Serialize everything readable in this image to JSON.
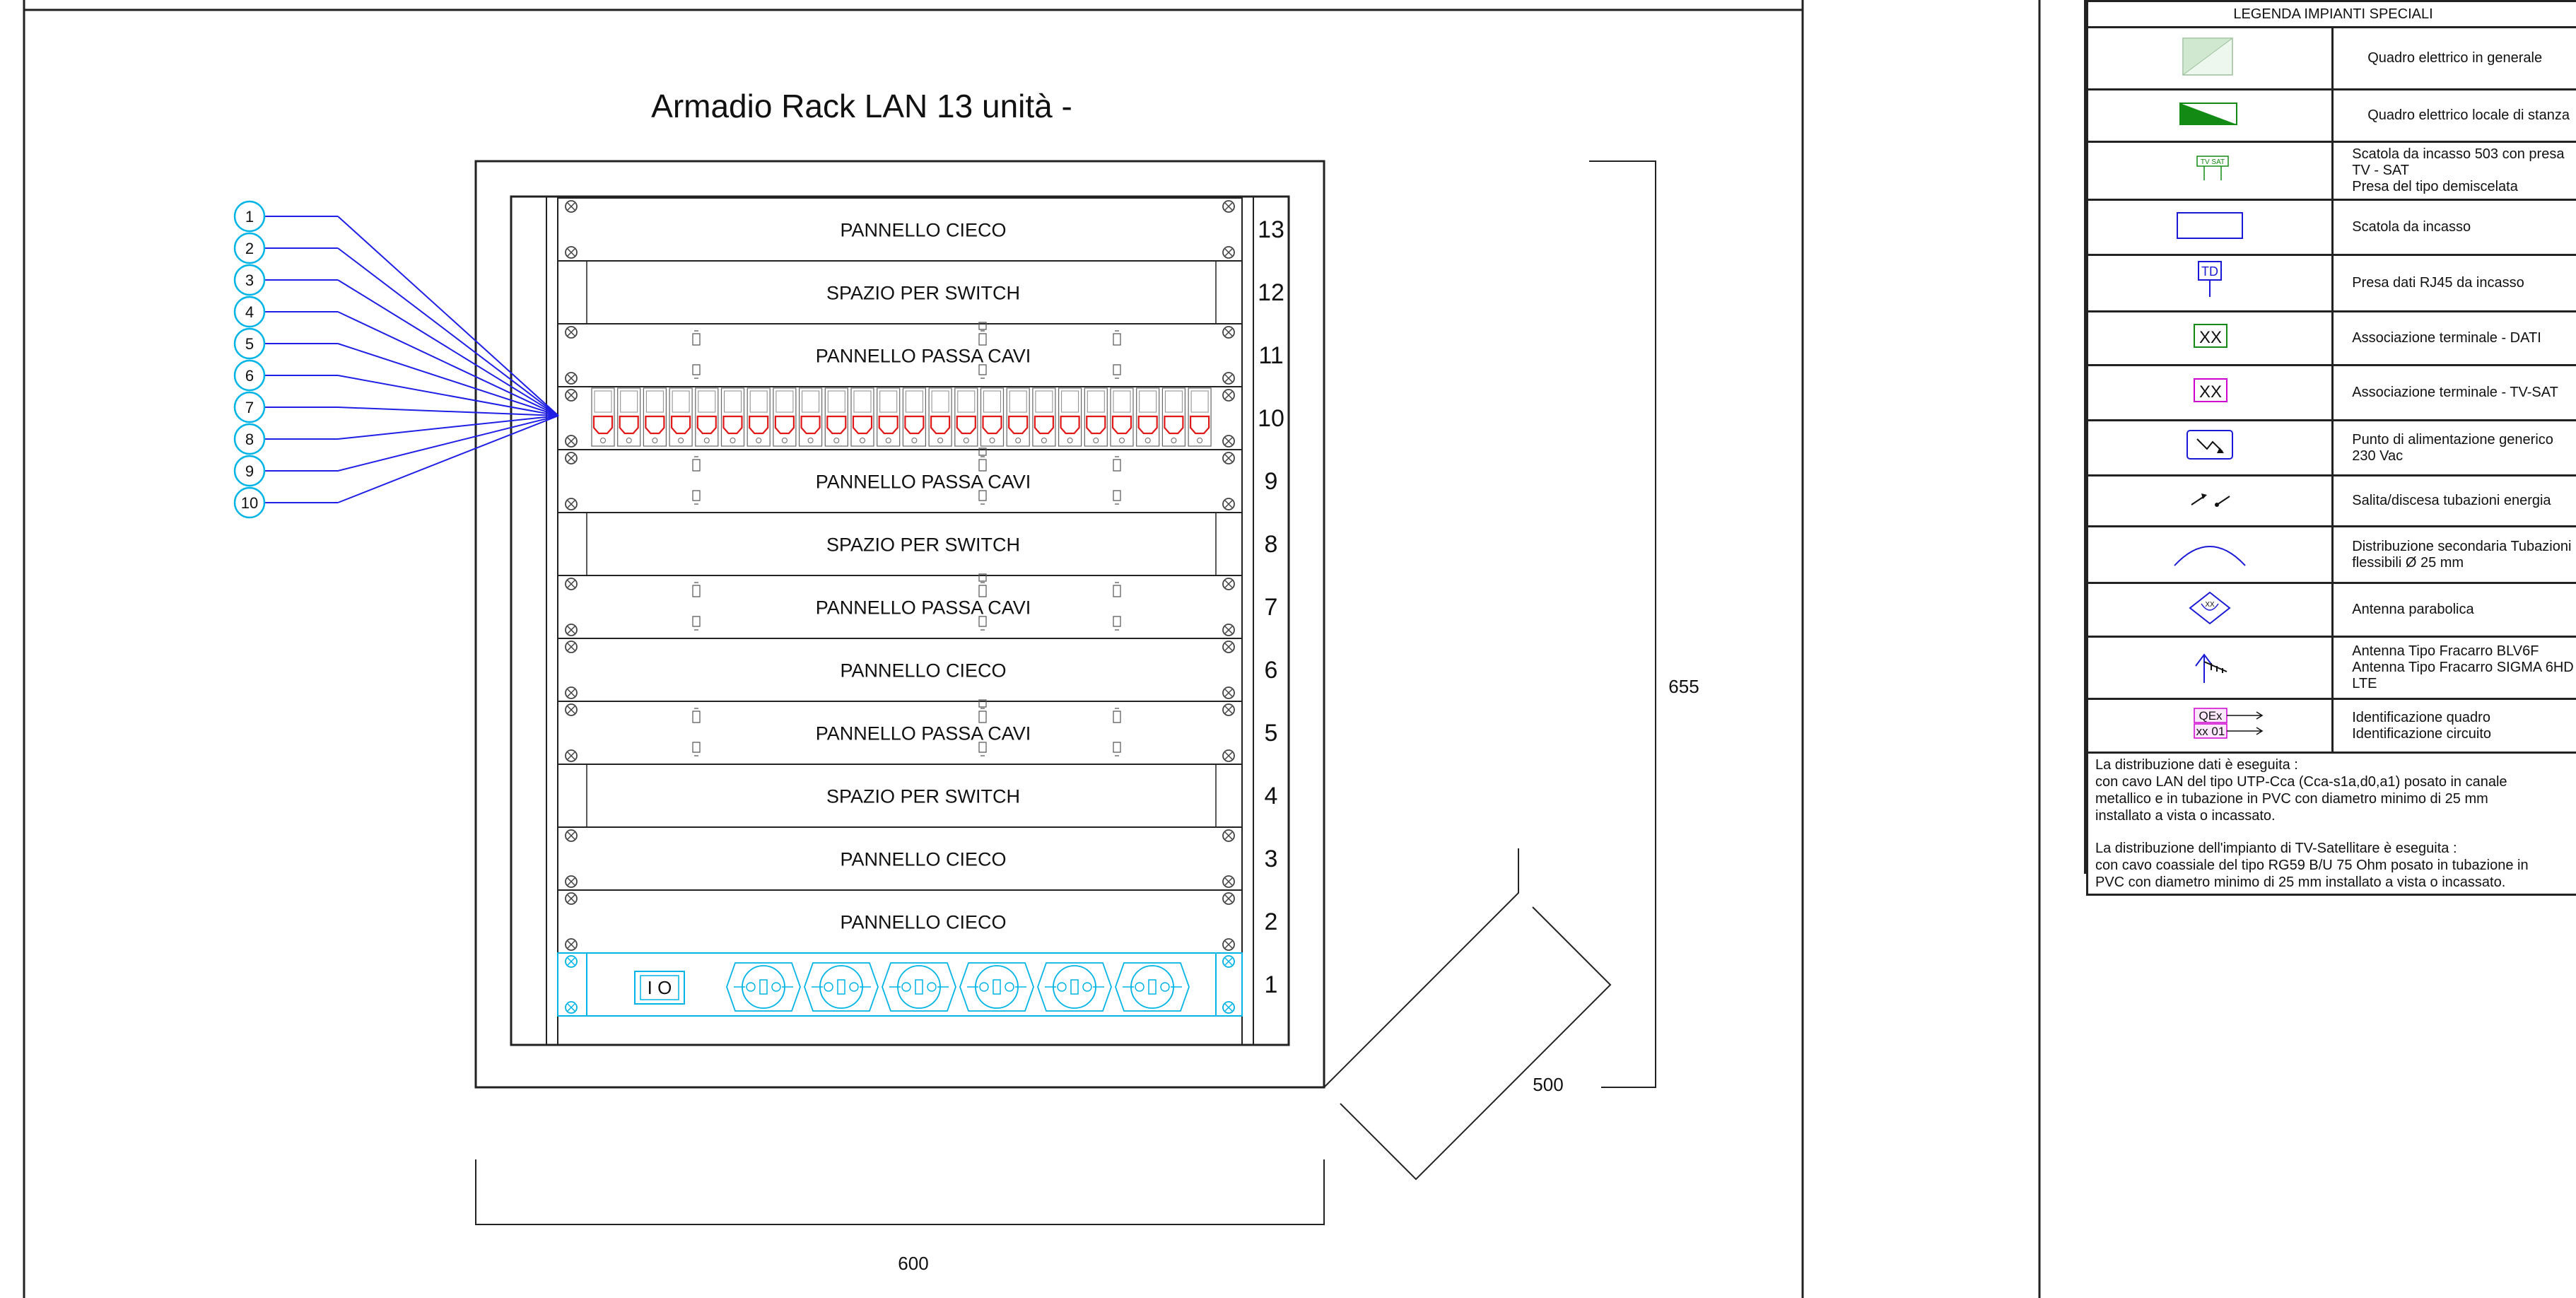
{
  "drawing": {
    "title": "Armadio Rack LAN 13 unità -",
    "dimensions": {
      "width": "600",
      "height": "655",
      "depth": "500"
    },
    "unit_numbers": [
      "13",
      "12",
      "11",
      "10",
      "9",
      "8",
      "7",
      "6",
      "5",
      "4",
      "3",
      "2",
      "1"
    ],
    "rack_units": [
      {
        "unit": "13",
        "label": "PANNELLO CIECO",
        "type": "blank"
      },
      {
        "unit": "12",
        "label": "SPAZIO PER SWITCH",
        "type": "switch"
      },
      {
        "unit": "11",
        "label": "PANNELLO PASSA CAVI",
        "type": "cable"
      },
      {
        "unit": "10",
        "label": "",
        "type": "patch"
      },
      {
        "unit": "9",
        "label": "PANNELLO PASSA CAVI",
        "type": "cable"
      },
      {
        "unit": "8",
        "label": "SPAZIO PER SWITCH",
        "type": "switch"
      },
      {
        "unit": "7",
        "label": "PANNELLO PASSA CAVI",
        "type": "cable"
      },
      {
        "unit": "6",
        "label": "PANNELLO CIECO",
        "type": "blank"
      },
      {
        "unit": "5",
        "label": "PANNELLO PASSA CAVI",
        "type": "cable"
      },
      {
        "unit": "4",
        "label": "SPAZIO PER SWITCH",
        "type": "switch"
      },
      {
        "unit": "3",
        "label": "PANNELLO CIECO",
        "type": "blank"
      },
      {
        "unit": "2",
        "label": "PANNELLO CIECO",
        "type": "blank"
      },
      {
        "unit": "1",
        "label": "",
        "type": "power"
      }
    ],
    "callouts": [
      "1",
      "2",
      "3",
      "4",
      "5",
      "6",
      "7",
      "8",
      "9",
      "10"
    ],
    "power_switch_label": "I O",
    "colors": {
      "line": "#222222",
      "wire": "#1f1fe6",
      "cyan": "#00b4e6",
      "red": "#e01818"
    }
  },
  "legend": {
    "title": "LEGENDA IMPIANTI SPECIALI",
    "items": [
      {
        "symbol": "quadro-generale-icon",
        "text": "Quadro elettrico in generale",
        "center": true
      },
      {
        "symbol": "quadro-stanza-icon",
        "text": "Quadro elettrico locale di stanza",
        "center": true
      },
      {
        "symbol": "presa-tv-sat-icon",
        "symbol_text": "TV SAT",
        "text": "Scatola da incasso 503 con presa TV - SAT\nPresa del tipo demiscelata"
      },
      {
        "symbol": "scatola-incasso-icon",
        "text": "Scatola da incasso"
      },
      {
        "symbol": "presa-dati-icon",
        "symbol_text": "TD",
        "text": "Presa dati RJ45 da incasso"
      },
      {
        "symbol": "terminale-dati-icon",
        "symbol_text": "XX",
        "text": "Associazione terminale -  DATI"
      },
      {
        "symbol": "terminale-tvsat-icon",
        "symbol_text": "XX",
        "text": "Associazione terminale -  TV-SAT"
      },
      {
        "symbol": "alimentazione-icon",
        "text": "Punto di alimentazione generico 230 Vac"
      },
      {
        "symbol": "salita-discesa-icon",
        "text": "Salita/discesa tubazioni energia"
      },
      {
        "symbol": "distribuzione-arc-icon",
        "text": "Distribuzione secondaria Tubazioni flessibili Ø 25 mm"
      },
      {
        "symbol": "antenna-parabolica-icon",
        "symbol_text": "XX",
        "text": "Antenna parabolica"
      },
      {
        "symbol": "antenna-fracarro-icon",
        "text": "Antenna Tipo Fracarro  BLV6F\nAntenna Tipo Fracarro SIGMA 6HD LTE"
      },
      {
        "symbol": "identificazione-icon",
        "symbol_text_1": "QEx",
        "symbol_text_2": "xx 01",
        "text": "Identificazione quadro\nIdentificazione circuito"
      }
    ],
    "notes": [
      "La distribuzione dati è eseguita :\ncon cavo LAN del tipo UTP-Cca (Cca-s1a,d0,a1) posato in canale\nmetallico e in tubazione in PVC con diametro minimo di 25 mm\ninstallato a vista o incassato.",
      "La distribuzione dell'impianto di TV-Satellitare è eseguita :\ncon cavo coassiale del tipo  RG59 B/U 75 Ohm posato in tubazione in\nPVC con diametro minimo di 25 mm installato a vista o incassato."
    ]
  }
}
